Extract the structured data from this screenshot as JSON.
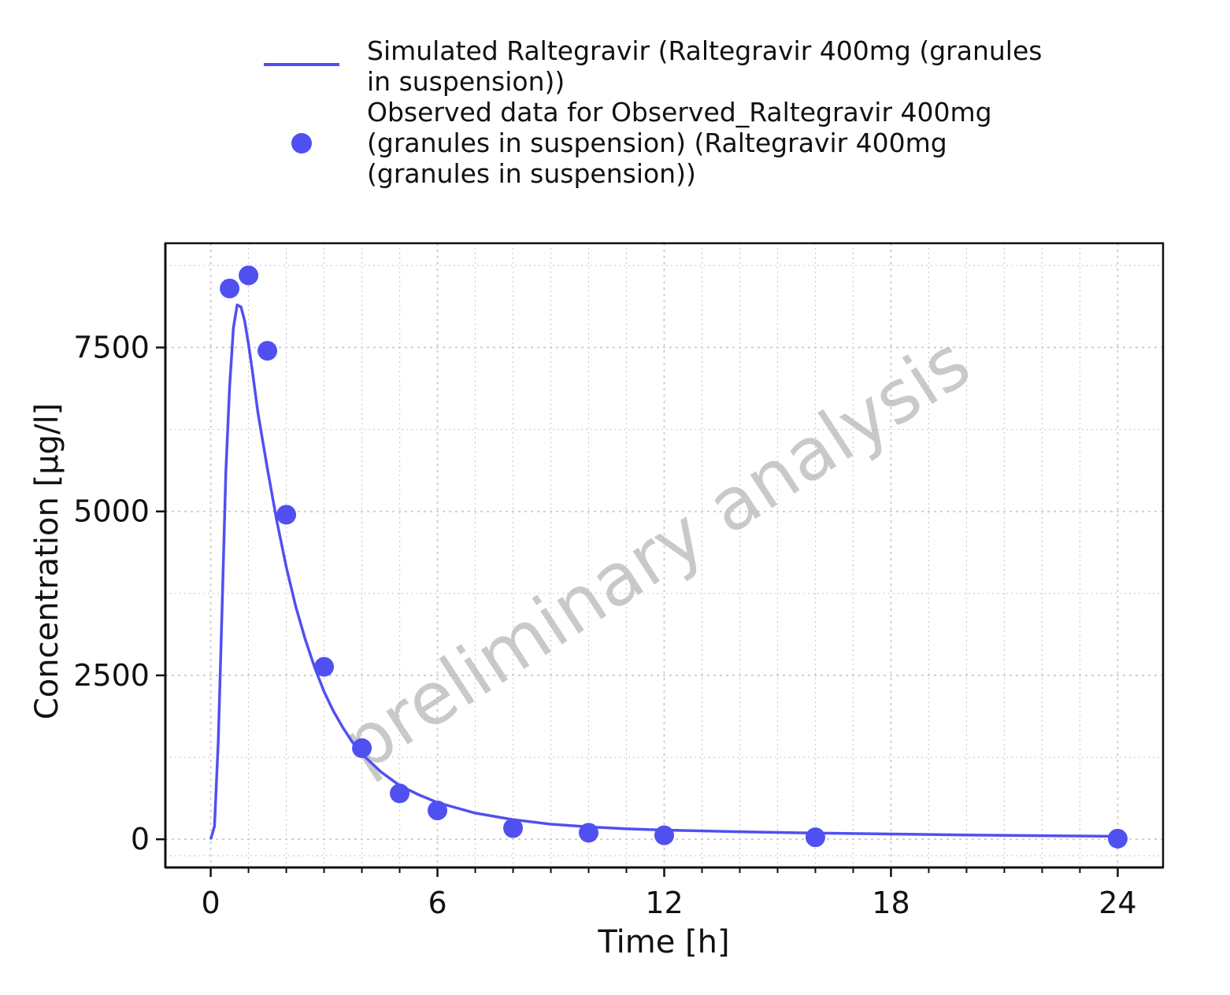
{
  "chart_data": {
    "type": "line",
    "title": "",
    "xlabel": "Time [h]",
    "ylabel": "Concentration [µg/l]",
    "xlim": [
      -1.2,
      25.2
    ],
    "ylim": [
      -430,
      9090
    ],
    "xticks": [
      0,
      6,
      12,
      18,
      24
    ],
    "yticks": [
      0,
      2500,
      5000,
      7500
    ],
    "x_minor_ticks": [
      1,
      2,
      3,
      4,
      5,
      7,
      8,
      9,
      10,
      11,
      13,
      14,
      15,
      16,
      17,
      19,
      20,
      21,
      22,
      23
    ],
    "y_minor_gridlines": [
      -250,
      1250,
      3750,
      6250,
      8750
    ],
    "grid": true,
    "legend_position": "top",
    "watermark": "preliminary analysis",
    "colors": {
      "series": "#5050f0",
      "axis": "#111111",
      "grid": "#cccccc"
    },
    "series": [
      {
        "name": "Simulated Raltegravir (Raltegravir 400mg (granules in suspension))",
        "kind": "line",
        "color": "#5050f0",
        "x": [
          0,
          0.1,
          0.2,
          0.3,
          0.4,
          0.5,
          0.6,
          0.7,
          0.8,
          0.9,
          1.0,
          1.1,
          1.25,
          1.5,
          1.75,
          2.0,
          2.25,
          2.5,
          2.75,
          3.0,
          3.25,
          3.5,
          3.75,
          4.0,
          4.5,
          5.0,
          5.5,
          6.0,
          7.0,
          8.0,
          9.0,
          10.0,
          11.0,
          12.0,
          14.0,
          16.0,
          18.0,
          20.0,
          22.0,
          24.0
        ],
        "y": [
          0,
          200,
          1500,
          3500,
          5600,
          6900,
          7800,
          8150,
          8120,
          7900,
          7550,
          7150,
          6500,
          5650,
          4850,
          4150,
          3550,
          3050,
          2620,
          2250,
          1950,
          1700,
          1480,
          1300,
          1030,
          820,
          680,
          560,
          400,
          300,
          230,
          190,
          160,
          140,
          115,
          95,
          80,
          65,
          55,
          45
        ]
      },
      {
        "name": "Observed data for Observed_Raltegravir 400mg (granules in suspension) (Raltegravir 400mg (granules in suspension))",
        "kind": "scatter",
        "color": "#5050f0",
        "x": [
          0.5,
          1.0,
          1.5,
          2.0,
          3.0,
          4.0,
          5.0,
          6.0,
          8.0,
          10.0,
          12.0,
          16.0,
          24.0
        ],
        "y": [
          8400,
          8600,
          7450,
          4950,
          2630,
          1390,
          700,
          440,
          170,
          100,
          60,
          30,
          10
        ]
      }
    ]
  },
  "legend": {
    "line_label_lines": [
      "Simulated Raltegravir (Raltegravir 400mg (granules",
      "in suspension))"
    ],
    "points_label_lines": [
      "Observed data for Observed_Raltegravir 400mg",
      "(granules in suspension) (Raltegravir 400mg",
      "(granules in suspension))"
    ]
  }
}
